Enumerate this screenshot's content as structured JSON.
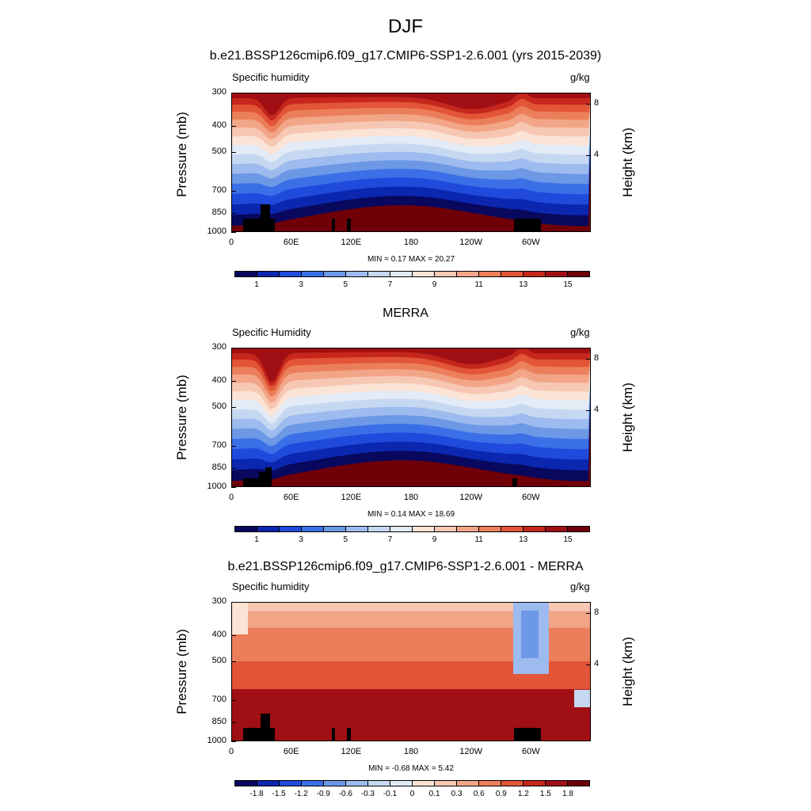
{
  "main_title": "DJF",
  "colors": {
    "seq": [
      "#08085e",
      "#0b27b0",
      "#1f4adb",
      "#3a6fe8",
      "#6c98e6",
      "#9dbbee",
      "#c6d8f1",
      "#e2ebf6",
      "#fbe3d6",
      "#f6c7b2",
      "#f2a587",
      "#ec7f5b",
      "#e25536",
      "#c6271d",
      "#a00f13",
      "#700008"
    ],
    "div": [
      "#08085e",
      "#0b27b0",
      "#1f4adb",
      "#3a6fe8",
      "#6c98e6",
      "#9dbbee",
      "#c6d8f1",
      "#e2ebf6",
      "#fbe3d6",
      "#f6c7b2",
      "#f2a587",
      "#ec7f5b",
      "#e25536",
      "#c6271d",
      "#a00f13",
      "#700008"
    ]
  },
  "chart_data": [
    {
      "type": "heatmap",
      "title": "b.e21.BSSP126cmip6.f09_g17.CMIP6-SSP1-2.6.001 (yrs 2015-2039)",
      "left_label": "Specific humidity",
      "right_label": "g/kg",
      "ylabel": "Pressure (mb)",
      "y2label": "Height (km)",
      "x_ticks": [
        "0",
        "60E",
        "120E",
        "180",
        "120W",
        "60W"
      ],
      "y_ticks": [
        "300",
        "400",
        "500",
        "700",
        "850",
        "1000"
      ],
      "y2_ticks": [
        "8",
        "4"
      ],
      "minmax": "MIN =   0.17  MAX =  20.27",
      "colorbar_labels": [
        "1",
        "3",
        "5",
        "7",
        "9",
        "11",
        "13",
        "15"
      ],
      "colorbar_ticks": [
        1,
        3,
        5,
        7,
        9,
        11,
        13,
        15
      ],
      "colorbar_range": [
        0,
        16
      ],
      "field_kind": "model"
    },
    {
      "type": "heatmap",
      "title": "MERRA",
      "left_label": "Specific Humidity",
      "right_label": "g/kg",
      "ylabel": "Pressure (mb)",
      "y2label": "Height (km)",
      "x_ticks": [
        "0",
        "60E",
        "120E",
        "180",
        "120W",
        "60W"
      ],
      "y_ticks": [
        "300",
        "400",
        "500",
        "700",
        "850",
        "1000"
      ],
      "y2_ticks": [
        "8",
        "4"
      ],
      "minmax": "MIN =   0.14  MAX =  18.69",
      "colorbar_labels": [
        "1",
        "3",
        "5",
        "7",
        "9",
        "11",
        "13",
        "15"
      ],
      "colorbar_ticks": [
        1,
        3,
        5,
        7,
        9,
        11,
        13,
        15
      ],
      "colorbar_range": [
        0,
        16
      ],
      "field_kind": "obs"
    },
    {
      "type": "heatmap",
      "title": "b.e21.BSSP126cmip6.f09_g17.CMIP6-SSP1-2.6.001 - MERRA",
      "left_label": "Specific humidity",
      "right_label": "g/kg",
      "ylabel": "Pressure (mb)",
      "y2label": "Height (km)",
      "x_ticks": [
        "0",
        "60E",
        "120E",
        "180",
        "120W",
        "60W"
      ],
      "y_ticks": [
        "300",
        "400",
        "500",
        "700",
        "850",
        "1000"
      ],
      "y2_ticks": [
        "8",
        "4"
      ],
      "minmax": "MIN =  -0.68  MAX =   5.42",
      "colorbar_labels": [
        "-1.8",
        "-1.5",
        "-1.2",
        "-0.9",
        "-0.6",
        "-0.3",
        "-0.1",
        "0",
        "0.1",
        "0.3",
        "0.6",
        "0.9",
        "1.2",
        "1.5",
        "1.8"
      ],
      "field_kind": "diff"
    }
  ]
}
